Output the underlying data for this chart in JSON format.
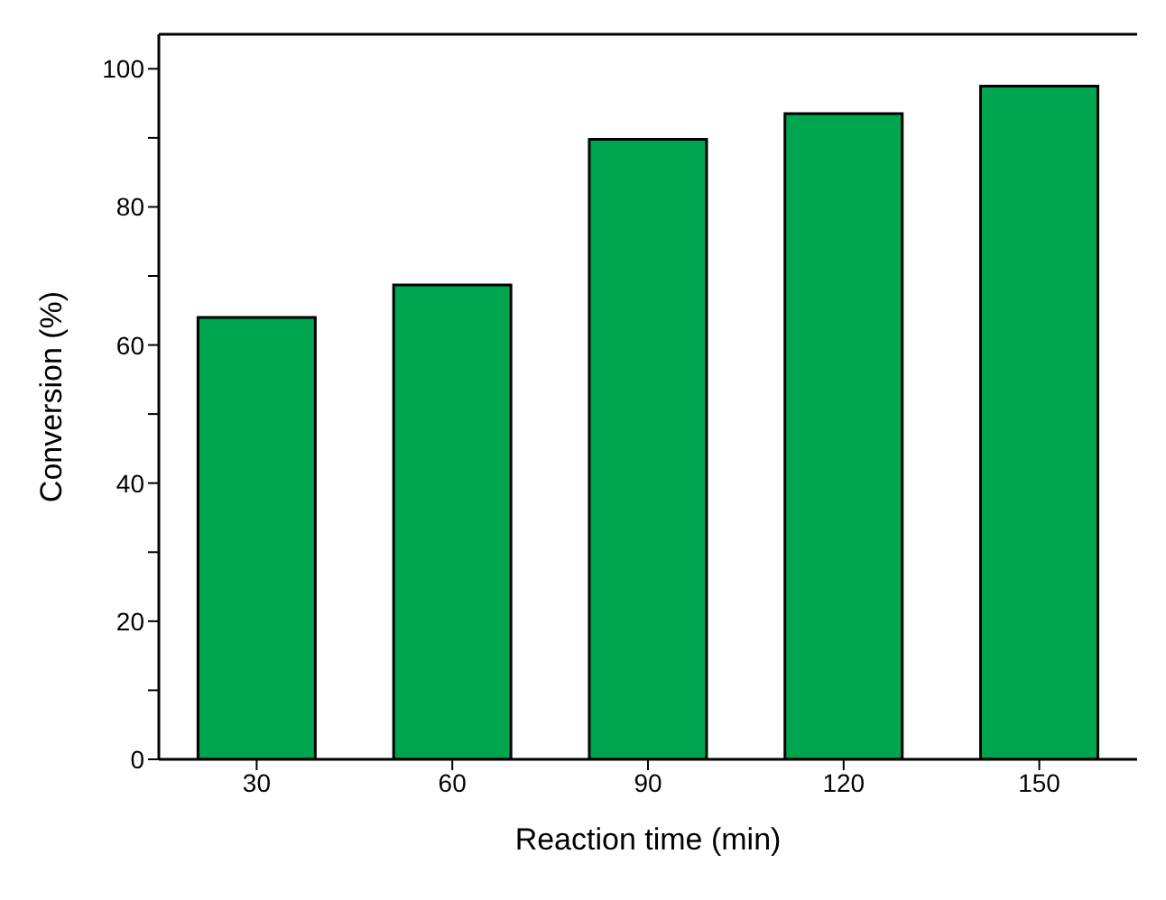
{
  "chart_data": {
    "type": "bar",
    "xlabel": "Reaction time (min)",
    "ylabel": "Conversion (%)",
    "categories": [
      "30",
      "60",
      "90",
      "120",
      "150"
    ],
    "values": [
      64,
      68.7,
      89.8,
      93.5,
      97.5
    ],
    "color": "#00a54f",
    "ylim": [
      0,
      105
    ],
    "yticks": [
      0,
      {
        "value": 10,
        "label": null
      },
      20,
      {
        "value": 30,
        "label": null
      },
      40,
      {
        "value": 50,
        "label": null
      },
      60,
      {
        "value": 70,
        "label": null
      },
      80,
      {
        "value": 90,
        "label": null
      },
      100
    ],
    "grid": false,
    "legend": false
  }
}
